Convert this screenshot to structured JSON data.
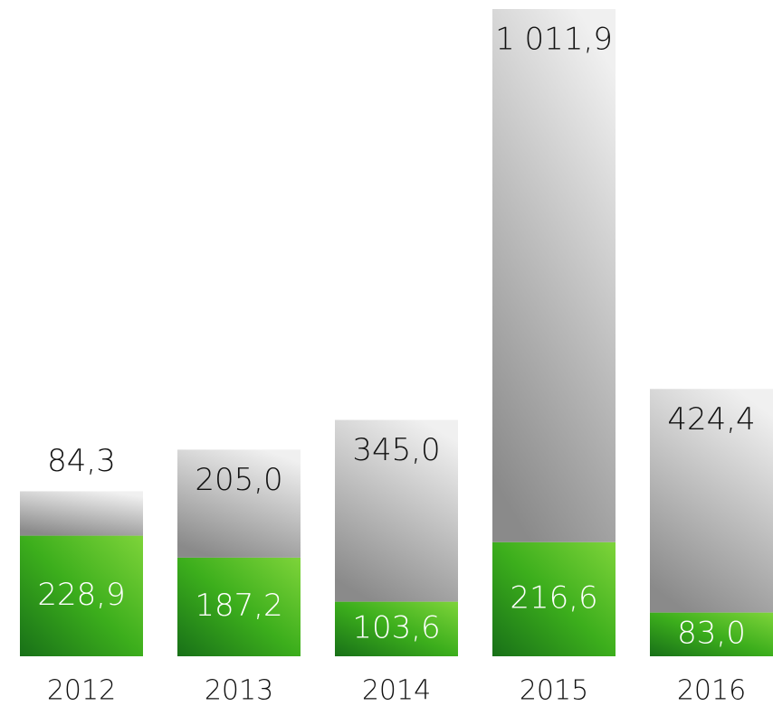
{
  "chart_data": {
    "type": "stacked_bar",
    "categories": [
      "2012",
      "2013",
      "2014",
      "2015",
      "2016"
    ],
    "series": [
      {
        "color": "#3fae1e",
        "values": [
          228.9,
          187.2,
          103.6,
          216.6,
          83.0
        ],
        "value_labels": [
          "228,9",
          "187,2",
          "103,6",
          "216,6",
          "83,0"
        ]
      },
      {
        "color": "#b5b5b5",
        "values": [
          84.3,
          205.0,
          345.0,
          1011.9,
          424.4
        ],
        "value_labels": [
          "84,3",
          "205,0",
          "345,0",
          "1 011,9",
          "424,4"
        ]
      }
    ]
  }
}
